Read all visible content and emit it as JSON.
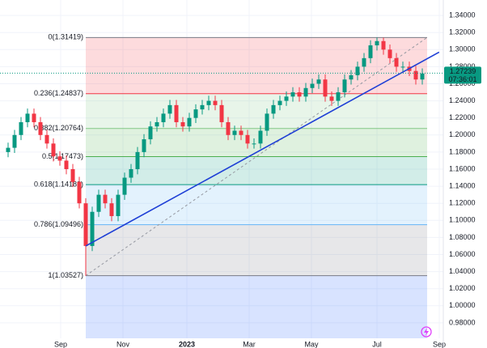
{
  "chart_data": {
    "type": "candlestick",
    "up_color": "#089981",
    "down_color": "#f23645",
    "grid": true,
    "xlim": [
      -1.25,
      67.25
    ],
    "ylim": [
      0.96,
      1.36
    ],
    "xticks": [
      {
        "value": 8.125,
        "label": "Sep"
      },
      {
        "value": 17.75,
        "label": "Nov"
      },
      {
        "value": 27.625,
        "label": "2023"
      },
      {
        "value": 37.25,
        "label": "Mar"
      },
      {
        "value": 46.875,
        "label": "May"
      },
      {
        "value": 57,
        "label": "Jul"
      },
      {
        "value": 66.625,
        "label": "Sep"
      }
    ],
    "yticks": [
      {
        "value": 0.98,
        "label": "0.98000"
      },
      {
        "value": 1.0,
        "label": "1.00000"
      },
      {
        "value": 1.02,
        "label": "1.02000"
      },
      {
        "value": 1.04,
        "label": "1.04000"
      },
      {
        "value": 1.06,
        "label": "1.06000"
      },
      {
        "value": 1.08,
        "label": "1.08000"
      },
      {
        "value": 1.1,
        "label": "1.10000"
      },
      {
        "value": 1.12,
        "label": "1.12000"
      },
      {
        "value": 1.14,
        "label": "1.14000"
      },
      {
        "value": 1.16,
        "label": "1.16000"
      },
      {
        "value": 1.18,
        "label": "1.18000"
      },
      {
        "value": 1.2,
        "label": "1.20000"
      },
      {
        "value": 1.22,
        "label": "1.22000"
      },
      {
        "value": 1.24,
        "label": "1.24000"
      },
      {
        "value": 1.26,
        "label": "1.26000"
      },
      {
        "value": 1.28,
        "label": "1.28000"
      },
      {
        "value": 1.3,
        "label": "1.30000"
      },
      {
        "value": 1.32,
        "label": "1.32000"
      },
      {
        "value": 1.34,
        "label": "1.34000"
      }
    ],
    "open": [
      1.18,
      1.185,
      1.2,
      1.215,
      1.225,
      1.215,
      1.2,
      1.19,
      1.175,
      1.17,
      1.16,
      1.145,
      1.12,
      1.07,
      1.11,
      1.13,
      1.12,
      1.105,
      1.13,
      1.15,
      1.16,
      1.18,
      1.195,
      1.21,
      1.215,
      1.225,
      1.235,
      1.215,
      1.21,
      1.22,
      1.23,
      1.235,
      1.24,
      1.235,
      1.215,
      1.2,
      1.205,
      1.2,
      1.19,
      1.19,
      1.205,
      1.225,
      1.235,
      1.24,
      1.245,
      1.25,
      1.245,
      1.255,
      1.26,
      1.265,
      1.245,
      1.24,
      1.25,
      1.265,
      1.27,
      1.28,
      1.29,
      1.305,
      1.31,
      1.3,
      1.29,
      1.28,
      1.28,
      1.275,
      1.265
    ],
    "high": [
      1.191,
      1.206,
      1.221,
      1.231,
      1.231,
      1.221,
      1.206,
      1.196,
      1.181,
      1.176,
      1.166,
      1.151,
      1.126,
      1.116,
      1.136,
      1.136,
      1.126,
      1.136,
      1.156,
      1.166,
      1.186,
      1.201,
      1.216,
      1.221,
      1.231,
      1.241,
      1.241,
      1.221,
      1.226,
      1.236,
      1.241,
      1.246,
      1.246,
      1.241,
      1.221,
      1.211,
      1.211,
      1.206,
      1.196,
      1.211,
      1.231,
      1.241,
      1.246,
      1.251,
      1.256,
      1.256,
      1.261,
      1.266,
      1.271,
      1.271,
      1.251,
      1.256,
      1.271,
      1.276,
      1.286,
      1.296,
      1.311,
      1.3142,
      1.314,
      1.306,
      1.296,
      1.286,
      1.286,
      1.281,
      1.278
    ],
    "low": [
      1.174,
      1.179,
      1.194,
      1.209,
      1.209,
      1.194,
      1.184,
      1.169,
      1.164,
      1.154,
      1.139,
      1.114,
      1.035,
      1.064,
      1.104,
      1.114,
      1.099,
      1.099,
      1.124,
      1.144,
      1.154,
      1.174,
      1.189,
      1.204,
      1.209,
      1.219,
      1.209,
      1.204,
      1.204,
      1.214,
      1.224,
      1.229,
      1.229,
      1.209,
      1.194,
      1.194,
      1.194,
      1.184,
      1.184,
      1.184,
      1.199,
      1.219,
      1.229,
      1.234,
      1.239,
      1.239,
      1.239,
      1.249,
      1.254,
      1.239,
      1.234,
      1.234,
      1.244,
      1.259,
      1.264,
      1.274,
      1.284,
      1.299,
      1.294,
      1.284,
      1.274,
      1.274,
      1.269,
      1.259,
      1.259
    ],
    "close": [
      1.185,
      1.2,
      1.215,
      1.225,
      1.215,
      1.2,
      1.19,
      1.175,
      1.17,
      1.16,
      1.145,
      1.12,
      1.07,
      1.11,
      1.13,
      1.12,
      1.105,
      1.13,
      1.15,
      1.16,
      1.18,
      1.195,
      1.21,
      1.215,
      1.225,
      1.235,
      1.215,
      1.21,
      1.22,
      1.23,
      1.235,
      1.24,
      1.235,
      1.215,
      1.2,
      1.205,
      1.2,
      1.19,
      1.19,
      1.205,
      1.225,
      1.235,
      1.24,
      1.245,
      1.25,
      1.245,
      1.255,
      1.26,
      1.265,
      1.245,
      1.24,
      1.25,
      1.265,
      1.27,
      1.28,
      1.29,
      1.305,
      1.31,
      1.3,
      1.29,
      1.28,
      1.28,
      1.275,
      1.265,
      1.272
    ],
    "fib": {
      "x": [
        12,
        64.75
      ],
      "levels": [
        {
          "label": "0(1.31419)",
          "price": 1.31419,
          "color": "#787b86",
          "fill": "#f23645"
        },
        {
          "label": "0.236(1.24837)",
          "price": 1.24837,
          "color": "#f23645",
          "fill": "#81c784"
        },
        {
          "label": "0.382(1.20764)",
          "price": 1.20764,
          "color": "#81c784",
          "fill": "#4caf50"
        },
        {
          "label": "0.5(1.17473)",
          "price": 1.17473,
          "color": "#4caf50",
          "fill": "#089981"
        },
        {
          "label": "0.618(1.14182)",
          "price": 1.14182,
          "color": "#089981",
          "fill": "#64b5f6"
        },
        {
          "label": "0.786(1.09496)",
          "price": 1.09496,
          "color": "#64b5f6",
          "fill": "#787b86"
        },
        {
          "label": "1(1.03527)",
          "price": 1.03527,
          "color": "#787b86",
          "fill": "#2962ff"
        }
      ]
    },
    "trend_line": {
      "x": [
        12,
        66.6
      ],
      "y": [
        1.07,
        1.297
      ],
      "color": "#1e3fd6"
    },
    "last_price": {
      "value": 1.27239,
      "countdown": "07:36:01",
      "color": "#089981"
    }
  }
}
